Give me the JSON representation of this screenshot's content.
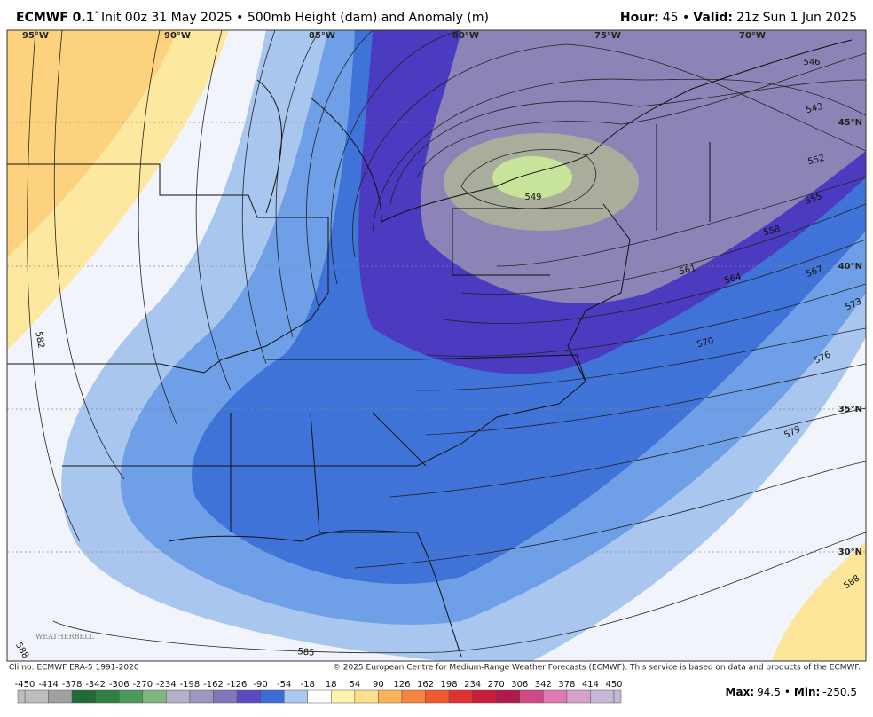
{
  "header": {
    "model": "ECMWF 0.1",
    "degree": "°",
    "init": "Init 00z 31 May 2025 • 500mb Height (dam) and Anomaly (m)",
    "hour_label": "Hour:",
    "hour": "45 •",
    "valid_label": "Valid:",
    "valid": "21z Sun 1 Jun 2025"
  },
  "lon_labels": [
    "95°W",
    "90°W",
    "85°W",
    "80°W",
    "75°W",
    "70°W"
  ],
  "lat_labels": [
    "45°N",
    "40°N",
    "35°N",
    "30°N"
  ],
  "contour_labels": [
    "546",
    "543",
    "552",
    "555",
    "558",
    "561",
    "564",
    "567",
    "570",
    "573",
    "576",
    "579",
    "549",
    "582",
    "585",
    "588",
    "588"
  ],
  "footer": {
    "climo": "Climo: ECMWF ERA-5 1991-2020",
    "copyright": "© 2025 European Centre for Medium-Range Weather Forecasts (ECMWF). This service is based on data and products of the ECMWF."
  },
  "colorbar": {
    "labels": [
      -450,
      -414,
      -378,
      -342,
      -306,
      -270,
      -234,
      -198,
      -162,
      -126,
      -90,
      -54,
      -18,
      18,
      54,
      90,
      126,
      162,
      198,
      234,
      270,
      306,
      342,
      378,
      414,
      450
    ],
    "colors": [
      "#bdbdbd",
      "#a0a0a0",
      "#1e6b36",
      "#2f7f45",
      "#4c9a5b",
      "#7db77f",
      "#b4b0c9",
      "#9e96c2",
      "#8277ba",
      "#5a4bc4",
      "#3a6dd6",
      "#aac8f0",
      "#ffffff",
      "#fff3b0",
      "#fde08a",
      "#fbb45a",
      "#f7853e",
      "#ef5a2e",
      "#e03030",
      "#c81e3c",
      "#b01a4a",
      "#d04a8a",
      "#e07ab0",
      "#d8a0cc",
      "#c8b8d8"
    ]
  },
  "stats": {
    "max_label": "Max:",
    "max": "94.5",
    "min_label": "Min:",
    "min": "-250.5"
  },
  "watermark": "WEATHERBELL"
}
